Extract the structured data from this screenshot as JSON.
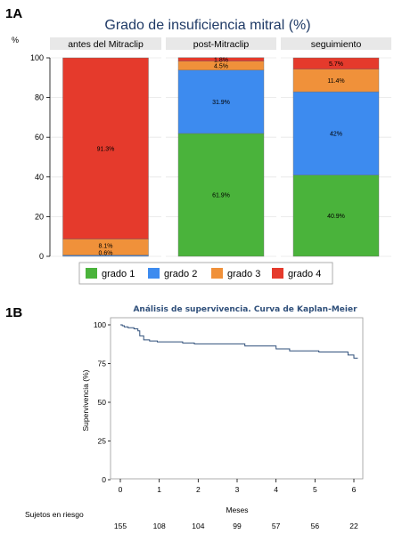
{
  "panel_a_label": "1A",
  "panel_b_label": "1B",
  "colors": {
    "grado_1": "#4ab33b",
    "grado_2": "#3d8bef",
    "grado_3": "#f0913a",
    "grado_4": "#e53a2c",
    "strip_bg": "#e8e8e8",
    "km_line": "#2f4f7a"
  },
  "chart_data": [
    {
      "type": "bar",
      "stacked": true,
      "title": "Grado de insuficiencia mitral (%)",
      "ylabel": "%",
      "ylim": [
        0,
        100
      ],
      "yticks": [
        0,
        20,
        40,
        60,
        80,
        100
      ],
      "categories": [
        "antes del Mitraclip",
        "post-Mitraclip",
        "seguimiento"
      ],
      "series": [
        {
          "name": "grado 1",
          "color": "#4ab33b",
          "values": [
            0,
            61.9,
            40.9
          ],
          "labels": [
            "",
            "61.9%",
            "40.9%"
          ]
        },
        {
          "name": "grado 2",
          "color": "#3d8bef",
          "values": [
            0.6,
            31.9,
            42
          ],
          "labels": [
            "0.6%",
            "31.9%",
            "42%"
          ]
        },
        {
          "name": "grado 3",
          "color": "#f0913a",
          "values": [
            8.1,
            4.5,
            11.4
          ],
          "labels": [
            "8.1%",
            "4.5%",
            "11.4%"
          ]
        },
        {
          "name": "grado 4",
          "color": "#e53a2c",
          "values": [
            91.3,
            1.8,
            5.7
          ],
          "labels": [
            "91.3%",
            "1.8%",
            "5.7%"
          ]
        }
      ],
      "legend_position": "bottom",
      "grid": true
    },
    {
      "type": "line",
      "title": "Análisis de supervivencia. Curva de Kaplan-Meier",
      "xlabel": "Meses",
      "ylabel": "Supervivencia (%)",
      "xlim": [
        0,
        6
      ],
      "ylim": [
        0,
        100
      ],
      "xticks": [
        0,
        1,
        2,
        3,
        4,
        5,
        6
      ],
      "yticks": [
        0,
        25,
        50,
        75,
        100
      ],
      "grid": false,
      "series": [
        {
          "step": true,
          "color": "#2f4f7a",
          "x": [
            0,
            0.05,
            0.1,
            0.2,
            0.35,
            0.45,
            0.5,
            0.6,
            0.75,
            0.95,
            1.6,
            1.9,
            2.4,
            3.2,
            4.0,
            4.35,
            5.1,
            5.85,
            6.0,
            6.1
          ],
          "y": [
            100,
            99.4,
            98.7,
            98.1,
            97.4,
            96.1,
            92.9,
            90.3,
            89.6,
            89.0,
            88.3,
            87.7,
            87.7,
            86.4,
            84.5,
            83.2,
            82.5,
            80.5,
            78.5,
            78.5
          ]
        }
      ],
      "risk_table": {
        "label": "Sujetos en riesgo",
        "counts": [
          "155",
          "108",
          "104",
          "99",
          "57",
          "56",
          "22"
        ]
      }
    }
  ]
}
